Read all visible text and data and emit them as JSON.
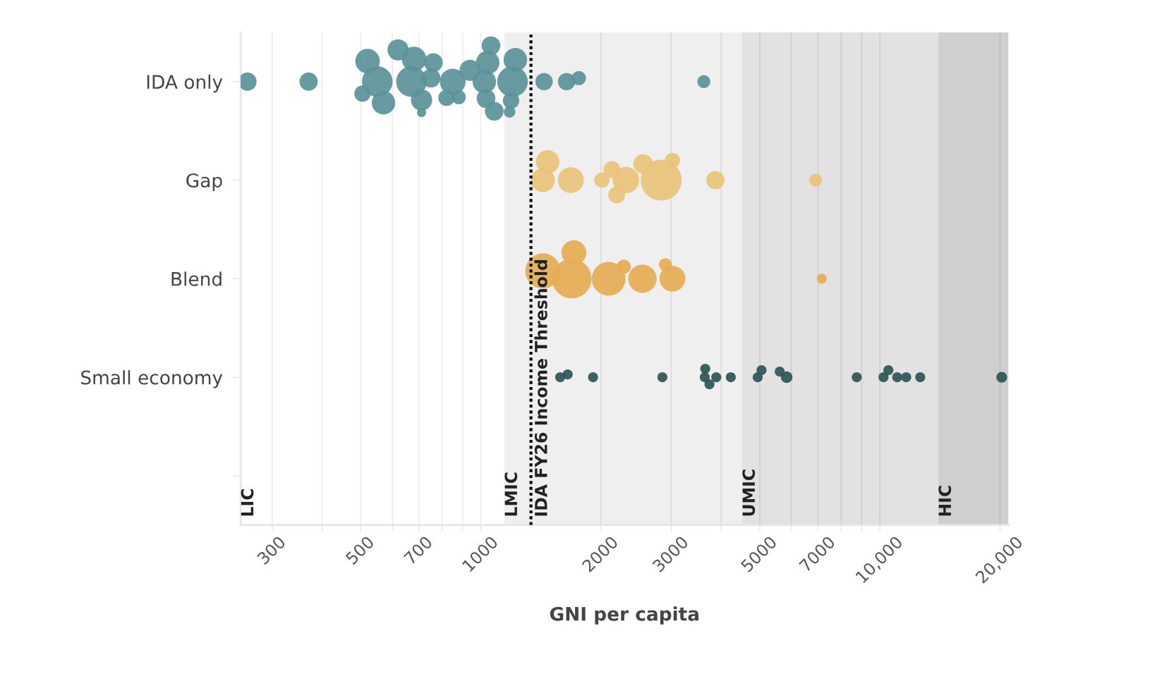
{
  "chart_data": {
    "type": "bubble",
    "orientation": "horizontal",
    "xlabel": "GNI per capita",
    "categories": [
      "IDA only",
      "Gap",
      "Blend",
      "Small economy",
      null
    ],
    "log": "x",
    "xlim": [
      250,
      21000
    ],
    "xticks": [
      300,
      {
        "value": 400,
        "label": null
      },
      500,
      {
        "value": 600,
        "label": null
      },
      700,
      {
        "value": 800,
        "label": null
      },
      {
        "value": 900,
        "label": null
      },
      1000,
      2000,
      3000,
      {
        "value": 4000,
        "label": null
      },
      5000,
      {
        "value": 6000,
        "label": null
      },
      7000,
      {
        "value": 8000,
        "label": null
      },
      {
        "value": 9000,
        "label": null
      },
      {
        "value": 10000,
        "label": "10,000"
      },
      {
        "value": 20000,
        "label": "20,000"
      }
    ],
    "grid": "x",
    "annotations": [
      "LIC"
    ],
    "bands": [
      {
        "axis": "x",
        "from": 1145,
        "to": 4515,
        "label": "LMIC",
        "color": "#efefef"
      },
      {
        "axis": "x",
        "from": 4515,
        "to": 14005,
        "label": "UMIC",
        "color": "#e2e2e2"
      },
      {
        "axis": "x",
        "from": 14005,
        "to": 21000,
        "label": "HIC",
        "color": "#cfcfcf"
      }
    ],
    "ref_lines": [
      {
        "axis": "x",
        "value": 1335,
        "label": "IDA FY26 Income Threshold",
        "color": "#000000",
        "line_style": "dotted"
      }
    ],
    "series": [
      {
        "values": [
          260,
          1470,
          1430,
          1580,
          null
        ],
        "sizes": [
          0.2,
          0.33,
          0.74,
          0.06,
          null
        ],
        "colors": [
          "#5b9399",
          "#e9c37a",
          "#e6ac52",
          "#2e5457",
          null
        ]
      },
      {
        "values": [
          370,
          1430,
          1690,
          1650,
          null
        ],
        "sizes": [
          0.2,
          0.34,
          0.93,
          0.06,
          null
        ],
        "colors": [
          "#5b9399",
          "#e9c37a",
          "#e6ac52",
          "#2e5457",
          null
        ]
      },
      {
        "values": [
          520,
          1680,
          1710,
          1910,
          null
        ],
        "sizes": [
          0.36,
          0.4,
          0.37,
          0.06,
          null
        ],
        "colors": [
          "#5b9399",
          "#e9c37a",
          "#e6ac52",
          "#2e5457",
          null
        ]
      },
      {
        "values": [
          570,
          2010,
          2090,
          2850,
          null
        ],
        "sizes": [
          0.33,
          0.14,
          0.68,
          0.06,
          null
        ],
        "colors": [
          "#5b9399",
          "#e9c37a",
          "#e6ac52",
          "#2e5457",
          null
        ]
      },
      {
        "values": [
          550,
          2130,
          2280,
          3640,
          null
        ],
        "sizes": [
          0.56,
          0.17,
          0.12,
          0.06,
          null
        ],
        "colors": [
          "#5b9399",
          "#e9c37a",
          "#e6ac52",
          "#2e5457",
          null
        ]
      },
      {
        "values": [
          505,
          2190,
          2540,
          3650,
          null
        ],
        "sizes": [
          0.16,
          0.17,
          0.48,
          0.06,
          null
        ],
        "colors": [
          "#5b9399",
          "#e9c37a",
          "#e6ac52",
          "#2e5457",
          null
        ]
      },
      {
        "values": [
          680,
          2310,
          2900,
          3740,
          null
        ],
        "sizes": [
          0.36,
          0.42,
          0.1,
          0.06,
          null
        ],
        "colors": [
          "#5b9399",
          "#e9c37a",
          "#e6ac52",
          "#2e5457",
          null
        ]
      },
      {
        "values": [
          670,
          2550,
          3020,
          3890,
          null
        ],
        "sizes": [
          0.56,
          0.23,
          0.4,
          0.06,
          null
        ],
        "colors": [
          "#5b9399",
          "#e9c37a",
          "#e6ac52",
          "#2e5457",
          null
        ]
      },
      {
        "values": [
          620,
          2830,
          7150,
          4230,
          null
        ],
        "sizes": [
          0.27,
          1,
          0.06,
          0.06,
          null
        ],
        "colors": [
          "#5b9399",
          "#e9c37a",
          "#e6ac52",
          "#2e5457",
          null
        ]
      },
      {
        "values": [
          710,
          3020,
          null,
          4940,
          null
        ],
        "sizes": [
          0.27,
          0.14,
          null,
          0.06,
          null
        ],
        "colors": [
          "#5b9399",
          "#e9c37a",
          null,
          "#2e5457",
          null
        ]
      },
      {
        "values": [
          710,
          3870,
          null,
          5050,
          null
        ],
        "sizes": [
          0.05,
          0.2,
          null,
          0.06,
          null
        ],
        "colors": [
          "#5b9399",
          "#e9c37a",
          null,
          "#2e5457",
          null
        ]
      },
      {
        "values": [
          750,
          6900,
          null,
          5610,
          null
        ],
        "sizes": [
          0.21,
          0.1,
          null,
          0.06,
          null
        ],
        "colors": [
          "#5b9399",
          "#e9c37a",
          null,
          "#2e5457",
          null
        ]
      },
      {
        "values": [
          760,
          null,
          null,
          5840,
          null
        ],
        "sizes": [
          0.21,
          null,
          null,
          0.08,
          null
        ],
        "colors": [
          "#5b9399",
          null,
          null,
          "#2e5457",
          null
        ]
      },
      {
        "values": [
          820,
          null,
          null,
          8750,
          null
        ],
        "sizes": [
          0.16,
          null,
          null,
          0.06,
          null
        ],
        "colors": [
          "#5b9399",
          null,
          null,
          "#2e5457",
          null
        ]
      },
      {
        "values": [
          880,
          null,
          null,
          10210,
          null
        ],
        "sizes": [
          0.12,
          null,
          null,
          0.06,
          null
        ],
        "colors": [
          "#5b9399",
          null,
          null,
          "#2e5457",
          null
        ]
      },
      {
        "values": [
          850,
          null,
          null,
          10500,
          null
        ],
        "sizes": [
          0.4,
          null,
          null,
          0.06,
          null
        ],
        "colors": [
          "#5b9399",
          null,
          null,
          "#2e5457",
          null
        ]
      },
      {
        "values": [
          940,
          null,
          null,
          11050,
          null
        ],
        "sizes": [
          0.27,
          null,
          null,
          0.06,
          null
        ],
        "colors": [
          "#5b9399",
          null,
          null,
          "#2e5457",
          null
        ]
      },
      {
        "values": [
          1030,
          null,
          null,
          11640,
          null
        ],
        "sizes": [
          0.21,
          null,
          null,
          0.06,
          null
        ],
        "colors": [
          "#5b9399",
          null,
          null,
          "#2e5457",
          null
        ]
      },
      {
        "values": [
          1020,
          null,
          null,
          12620,
          null
        ],
        "sizes": [
          0.33,
          null,
          null,
          0.06,
          null
        ],
        "colors": [
          "#5b9399",
          null,
          null,
          "#2e5457",
          null
        ]
      },
      {
        "values": [
          1040,
          null,
          null,
          20200,
          null
        ],
        "sizes": [
          0.33,
          null,
          null,
          0.07,
          null
        ],
        "colors": [
          "#5b9399",
          null,
          null,
          "#2e5457",
          null
        ]
      },
      {
        "values": [
          1080,
          null,
          null,
          null,
          null
        ],
        "sizes": [
          0.21,
          null,
          null,
          null,
          null
        ],
        "color": "#5b9399"
      },
      {
        "values": [
          1060,
          null,
          null,
          null,
          null
        ],
        "sizes": [
          0.21,
          null,
          null,
          null,
          null
        ],
        "color": "#5b9399"
      },
      {
        "values": [
          1200,
          null,
          null,
          null,
          null
        ],
        "sizes": [
          0.56,
          null,
          null,
          null,
          null
        ],
        "color": "#5b9399"
      },
      {
        "values": [
          1220,
          null,
          null,
          null,
          null
        ],
        "sizes": [
          0.33,
          null,
          null,
          null,
          null
        ],
        "color": "#5b9399"
      },
      {
        "values": [
          1180,
          null,
          null,
          null,
          null
        ],
        "sizes": [
          0.08,
          null,
          null,
          null,
          null
        ],
        "color": "#5b9399"
      },
      {
        "values": [
          1190,
          null,
          null,
          null,
          null
        ],
        "sizes": [
          0.16,
          null,
          null,
          null,
          null
        ],
        "color": "#5b9399"
      },
      {
        "values": [
          1440,
          null,
          null,
          null,
          null
        ],
        "sizes": [
          0.18,
          null,
          null,
          null,
          null
        ],
        "color": "#5b9399"
      },
      {
        "values": [
          1640,
          null,
          null,
          null,
          null
        ],
        "sizes": [
          0.18,
          null,
          null,
          null,
          null
        ],
        "color": "#5b9399"
      },
      {
        "values": [
          1760,
          null,
          null,
          null,
          null
        ],
        "sizes": [
          0.12,
          null,
          null,
          null,
          null
        ],
        "color": "#5b9399"
      },
      {
        "values": [
          3620,
          null,
          null,
          null,
          null
        ],
        "sizes": [
          0.1,
          null,
          null,
          null,
          null
        ],
        "color": "#5b9399"
      }
    ]
  }
}
